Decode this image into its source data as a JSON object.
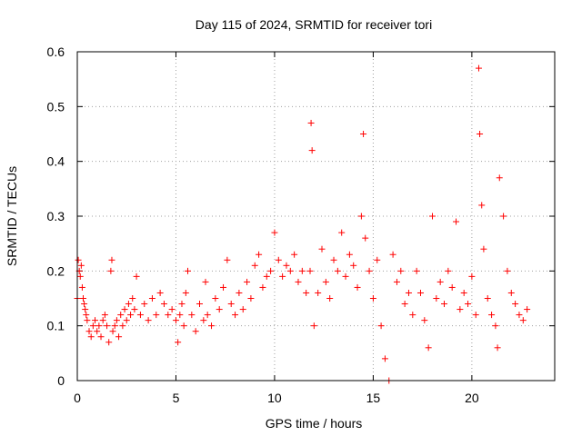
{
  "chart_data": {
    "type": "scatter",
    "title": "Day 115 of 2024, SRMTID for receiver tori",
    "xlabel": "GPS time / hours",
    "ylabel": "SRMTID / TECUs",
    "xlim": [
      0,
      24.2
    ],
    "ylim": [
      0,
      0.6
    ],
    "xticks": [
      0,
      5,
      10,
      15,
      20
    ],
    "xtick_labels": [
      "0",
      "5",
      "10",
      "15",
      "20"
    ],
    "yticks": [
      0,
      0.1,
      0.2,
      0.3,
      0.4,
      0.5,
      0.6
    ],
    "ytick_labels": [
      "0",
      "0.1",
      "0.2",
      "0.3",
      "0.4",
      "0.5",
      "0.6"
    ],
    "grid": true,
    "marker": "+",
    "series": [
      {
        "name": "SRMTID",
        "color": "#ff0000",
        "x": [
          0.0,
          0.05,
          0.1,
          0.15,
          0.2,
          0.25,
          0.3,
          0.35,
          0.4,
          0.45,
          0.5,
          0.6,
          0.7,
          0.8,
          0.9,
          1.0,
          1.1,
          1.2,
          1.3,
          1.4,
          1.5,
          1.6,
          1.7,
          1.75,
          1.8,
          1.9,
          2.0,
          2.1,
          2.2,
          2.3,
          2.4,
          2.5,
          2.6,
          2.7,
          2.8,
          2.9,
          3.0,
          3.2,
          3.4,
          3.6,
          3.8,
          4.0,
          4.2,
          4.4,
          4.6,
          4.8,
          5.0,
          5.1,
          5.2,
          5.3,
          5.4,
          5.5,
          5.6,
          5.8,
          6.0,
          6.2,
          6.4,
          6.5,
          6.6,
          6.8,
          7.0,
          7.2,
          7.4,
          7.6,
          7.8,
          8.0,
          8.2,
          8.4,
          8.6,
          8.8,
          9.0,
          9.2,
          9.4,
          9.6,
          9.8,
          10.0,
          10.2,
          10.4,
          10.6,
          10.8,
          11.0,
          11.2,
          11.4,
          11.6,
          11.8,
          11.85,
          11.9,
          12.0,
          12.2,
          12.4,
          12.6,
          12.8,
          13.0,
          13.2,
          13.4,
          13.6,
          13.8,
          14.0,
          14.2,
          14.4,
          14.5,
          14.6,
          14.8,
          15.0,
          15.2,
          15.4,
          15.6,
          15.8,
          16.0,
          16.2,
          16.4,
          16.6,
          16.8,
          17.0,
          17.2,
          17.4,
          17.6,
          17.8,
          18.0,
          18.2,
          18.4,
          18.6,
          18.8,
          19.0,
          19.2,
          19.4,
          19.6,
          19.8,
          20.0,
          20.2,
          20.35,
          20.4,
          20.5,
          20.6,
          20.8,
          21.0,
          21.2,
          21.3,
          21.4,
          21.6,
          21.8,
          22.0,
          22.2,
          22.4,
          22.6,
          22.8
        ],
        "y": [
          0.15,
          0.22,
          0.2,
          0.19,
          0.21,
          0.17,
          0.15,
          0.14,
          0.13,
          0.12,
          0.11,
          0.09,
          0.08,
          0.1,
          0.11,
          0.09,
          0.1,
          0.08,
          0.11,
          0.12,
          0.1,
          0.07,
          0.2,
          0.22,
          0.09,
          0.1,
          0.11,
          0.08,
          0.12,
          0.1,
          0.13,
          0.11,
          0.14,
          0.12,
          0.15,
          0.13,
          0.19,
          0.12,
          0.14,
          0.11,
          0.15,
          0.12,
          0.16,
          0.14,
          0.12,
          0.13,
          0.11,
          0.07,
          0.12,
          0.14,
          0.1,
          0.16,
          0.2,
          0.12,
          0.09,
          0.14,
          0.11,
          0.18,
          0.12,
          0.1,
          0.15,
          0.13,
          0.17,
          0.22,
          0.14,
          0.12,
          0.16,
          0.13,
          0.18,
          0.15,
          0.21,
          0.23,
          0.17,
          0.19,
          0.2,
          0.27,
          0.22,
          0.19,
          0.21,
          0.2,
          0.23,
          0.18,
          0.2,
          0.16,
          0.2,
          0.47,
          0.42,
          0.1,
          0.16,
          0.24,
          0.18,
          0.15,
          0.22,
          0.2,
          0.27,
          0.19,
          0.23,
          0.21,
          0.17,
          0.3,
          0.45,
          0.26,
          0.2,
          0.15,
          0.22,
          0.1,
          0.04,
          0.0,
          0.23,
          0.18,
          0.2,
          0.14,
          0.16,
          0.12,
          0.2,
          0.16,
          0.11,
          0.06,
          0.3,
          0.15,
          0.18,
          0.14,
          0.2,
          0.17,
          0.29,
          0.13,
          0.16,
          0.14,
          0.19,
          0.12,
          0.57,
          0.45,
          0.32,
          0.24,
          0.15,
          0.12,
          0.1,
          0.06,
          0.37,
          0.3,
          0.2,
          0.16,
          0.14,
          0.12,
          0.11,
          0.13
        ]
      }
    ]
  }
}
